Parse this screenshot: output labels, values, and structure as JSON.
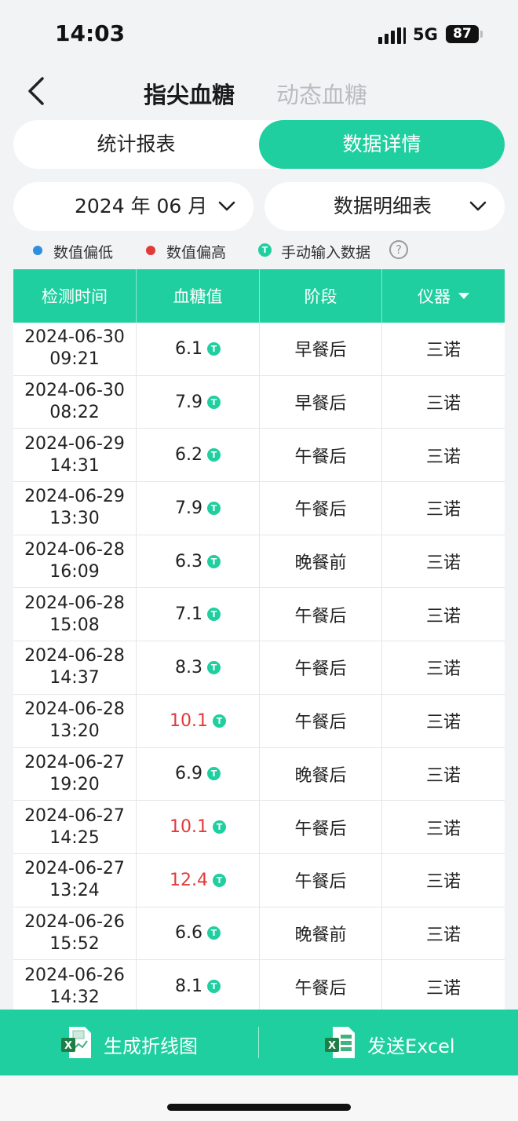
{
  "status": {
    "time": "14:03",
    "network": "5G",
    "battery": "87"
  },
  "nav": {
    "tabs": [
      {
        "label": "指尖血糖"
      },
      {
        "label": "动态血糖"
      }
    ]
  },
  "segment": {
    "left": "统计报表",
    "right": "数据详情"
  },
  "filters": {
    "month": "2024 年 06 月",
    "view": "数据明细表"
  },
  "legend": {
    "low": "数值偏低",
    "high": "数值偏高",
    "manual": "手动输入数据",
    "manual_badge": "T",
    "help": "?"
  },
  "colors": {
    "accent": "#1fcf9f",
    "low": "#2d8fe0",
    "high": "#e23a3a"
  },
  "table": {
    "headers": [
      "检测时间",
      "血糖值",
      "阶段",
      "仪器"
    ],
    "badge": "T",
    "rows": [
      {
        "date": "2024-06-30",
        "time": "09:21",
        "value": "6.1",
        "stage": "早餐后",
        "device": "三诺",
        "high": false
      },
      {
        "date": "2024-06-30",
        "time": "08:22",
        "value": "7.9",
        "stage": "早餐后",
        "device": "三诺",
        "high": false
      },
      {
        "date": "2024-06-29",
        "time": "14:31",
        "value": "6.2",
        "stage": "午餐后",
        "device": "三诺",
        "high": false
      },
      {
        "date": "2024-06-29",
        "time": "13:30",
        "value": "7.9",
        "stage": "午餐后",
        "device": "三诺",
        "high": false
      },
      {
        "date": "2024-06-28",
        "time": "16:09",
        "value": "6.3",
        "stage": "晚餐前",
        "device": "三诺",
        "high": false
      },
      {
        "date": "2024-06-28",
        "time": "15:08",
        "value": "7.1",
        "stage": "午餐后",
        "device": "三诺",
        "high": false
      },
      {
        "date": "2024-06-28",
        "time": "14:37",
        "value": "8.3",
        "stage": "午餐后",
        "device": "三诺",
        "high": false
      },
      {
        "date": "2024-06-28",
        "time": "13:20",
        "value": "10.1",
        "stage": "午餐后",
        "device": "三诺",
        "high": true
      },
      {
        "date": "2024-06-27",
        "time": "19:20",
        "value": "6.9",
        "stage": "晚餐后",
        "device": "三诺",
        "high": false
      },
      {
        "date": "2024-06-27",
        "time": "14:25",
        "value": "10.1",
        "stage": "午餐后",
        "device": "三诺",
        "high": true
      },
      {
        "date": "2024-06-27",
        "time": "13:24",
        "value": "12.4",
        "stage": "午餐后",
        "device": "三诺",
        "high": true
      },
      {
        "date": "2024-06-26",
        "time": "15:52",
        "value": "6.6",
        "stage": "晚餐前",
        "device": "三诺",
        "high": false
      },
      {
        "date": "2024-06-26",
        "time": "14:32",
        "value": "8.1",
        "stage": "午餐后",
        "device": "三诺",
        "high": false
      }
    ]
  },
  "bottom": {
    "chart_label": "生成折线图",
    "excel_label": "发送Excel"
  }
}
